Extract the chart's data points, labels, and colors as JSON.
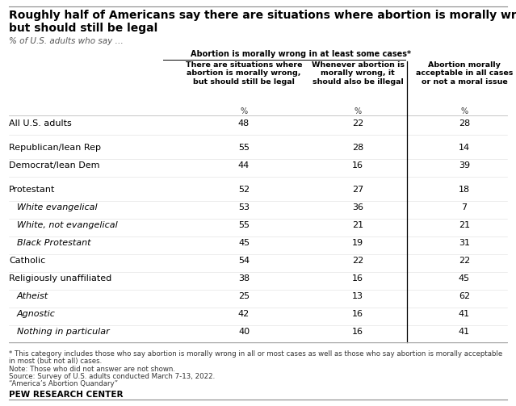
{
  "title_line1": "Roughly half of Americans say there are situations where abortion is morally wrong,",
  "title_line2": "but should still be legal",
  "subtitle": "% of U.S. adults who say …",
  "col_header_top": "Abortion is morally wrong in at least some cases*",
  "col_headers": [
    "There are situations where\nabortion is morally wrong,\nbut should still be legal",
    "Whenever abortion is\nmorally wrong, it\nshould also be illegal",
    "Abortion morally\nacceptable in all cases\nor not a moral issue"
  ],
  "rows": [
    {
      "label": "All U.S. adults",
      "indent": false,
      "italic": false,
      "values": [
        48,
        22,
        28
      ],
      "sep_after": true
    },
    {
      "label": "Republican/lean Rep",
      "indent": false,
      "italic": false,
      "values": [
        55,
        28,
        14
      ],
      "sep_after": false
    },
    {
      "label": "Democrat/lean Dem",
      "indent": false,
      "italic": false,
      "values": [
        44,
        16,
        39
      ],
      "sep_after": true
    },
    {
      "label": "Protestant",
      "indent": false,
      "italic": false,
      "values": [
        52,
        27,
        18
      ],
      "sep_after": false
    },
    {
      "label": "White evangelical",
      "indent": true,
      "italic": true,
      "values": [
        53,
        36,
        7
      ],
      "sep_after": false
    },
    {
      "label": "White, not evangelical",
      "indent": true,
      "italic": true,
      "values": [
        55,
        21,
        21
      ],
      "sep_after": false
    },
    {
      "label": "Black Protestant",
      "indent": true,
      "italic": true,
      "values": [
        45,
        19,
        31
      ],
      "sep_after": false
    },
    {
      "label": "Catholic",
      "indent": false,
      "italic": false,
      "values": [
        54,
        22,
        22
      ],
      "sep_after": false
    },
    {
      "label": "Religiously unaffiliated",
      "indent": false,
      "italic": false,
      "values": [
        38,
        16,
        45
      ],
      "sep_after": false
    },
    {
      "label": "Atheist",
      "indent": true,
      "italic": true,
      "values": [
        25,
        13,
        62
      ],
      "sep_after": false
    },
    {
      "label": "Agnostic",
      "indent": true,
      "italic": true,
      "values": [
        42,
        16,
        41
      ],
      "sep_after": false
    },
    {
      "label": "Nothing in particular",
      "indent": true,
      "italic": true,
      "values": [
        40,
        16,
        41
      ],
      "sep_after": false
    }
  ],
  "footnote1": "* This category includes those who say abortion is morally wrong in all or most cases as well as those who say abortion is morally acceptable",
  "footnote1b": "in most (but not all) cases.",
  "footnote2": "Note: Those who did not answer are not shown.",
  "footnote3": "Source: Survey of U.S. adults conducted March 7-13, 2022.",
  "footnote4": "“America’s Abortion Quandary”",
  "footer": "PEW RESEARCH CENTER",
  "bg_color": "#FFFFFF",
  "text_color": "#000000"
}
